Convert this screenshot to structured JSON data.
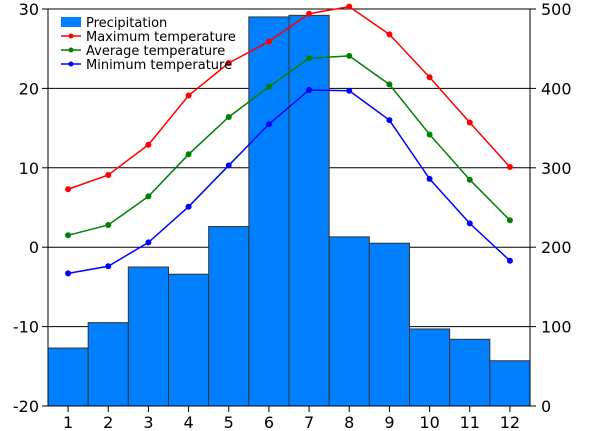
{
  "chart_data": {
    "type": "bar",
    "title": "",
    "xlabel": "",
    "categories": [
      "1",
      "2",
      "3",
      "4",
      "5",
      "6",
      "7",
      "8",
      "9",
      "10",
      "11",
      "12"
    ],
    "bar_series": {
      "name": "Precipitation",
      "values": [
        73,
        105,
        175,
        166,
        226,
        490,
        492,
        213,
        205,
        97,
        84,
        57
      ],
      "color": "#0080ff"
    },
    "line_series": [
      {
        "name": "Maximum temperature",
        "values": [
          7.3,
          9.1,
          12.9,
          19.1,
          23.2,
          25.9,
          29.4,
          30.3,
          26.8,
          21.4,
          15.7,
          10.1
        ],
        "color": "#ff0000"
      },
      {
        "name": "Average temperature",
        "values": [
          1.5,
          2.8,
          6.4,
          11.7,
          16.4,
          20.2,
          23.8,
          24.1,
          20.5,
          14.2,
          8.5,
          3.4
        ],
        "color": "#008000"
      },
      {
        "name": "Minimum temperature",
        "values": [
          -3.3,
          -2.4,
          0.6,
          5.1,
          10.3,
          15.5,
          19.8,
          19.7,
          16.0,
          8.6,
          3.0,
          -1.7
        ],
        "color": "#0000ff"
      }
    ],
    "y_left": {
      "label": "",
      "ylim": [
        -20,
        30
      ],
      "ticks": [
        "-20",
        "-10",
        "0",
        "10",
        "20",
        "30"
      ]
    },
    "y_right": {
      "label": "",
      "ylim": [
        0,
        500
      ],
      "ticks": [
        "0",
        "100",
        "200",
        "300",
        "400",
        "500"
      ]
    },
    "grid": true,
    "legend": {
      "position": "top-left"
    }
  }
}
